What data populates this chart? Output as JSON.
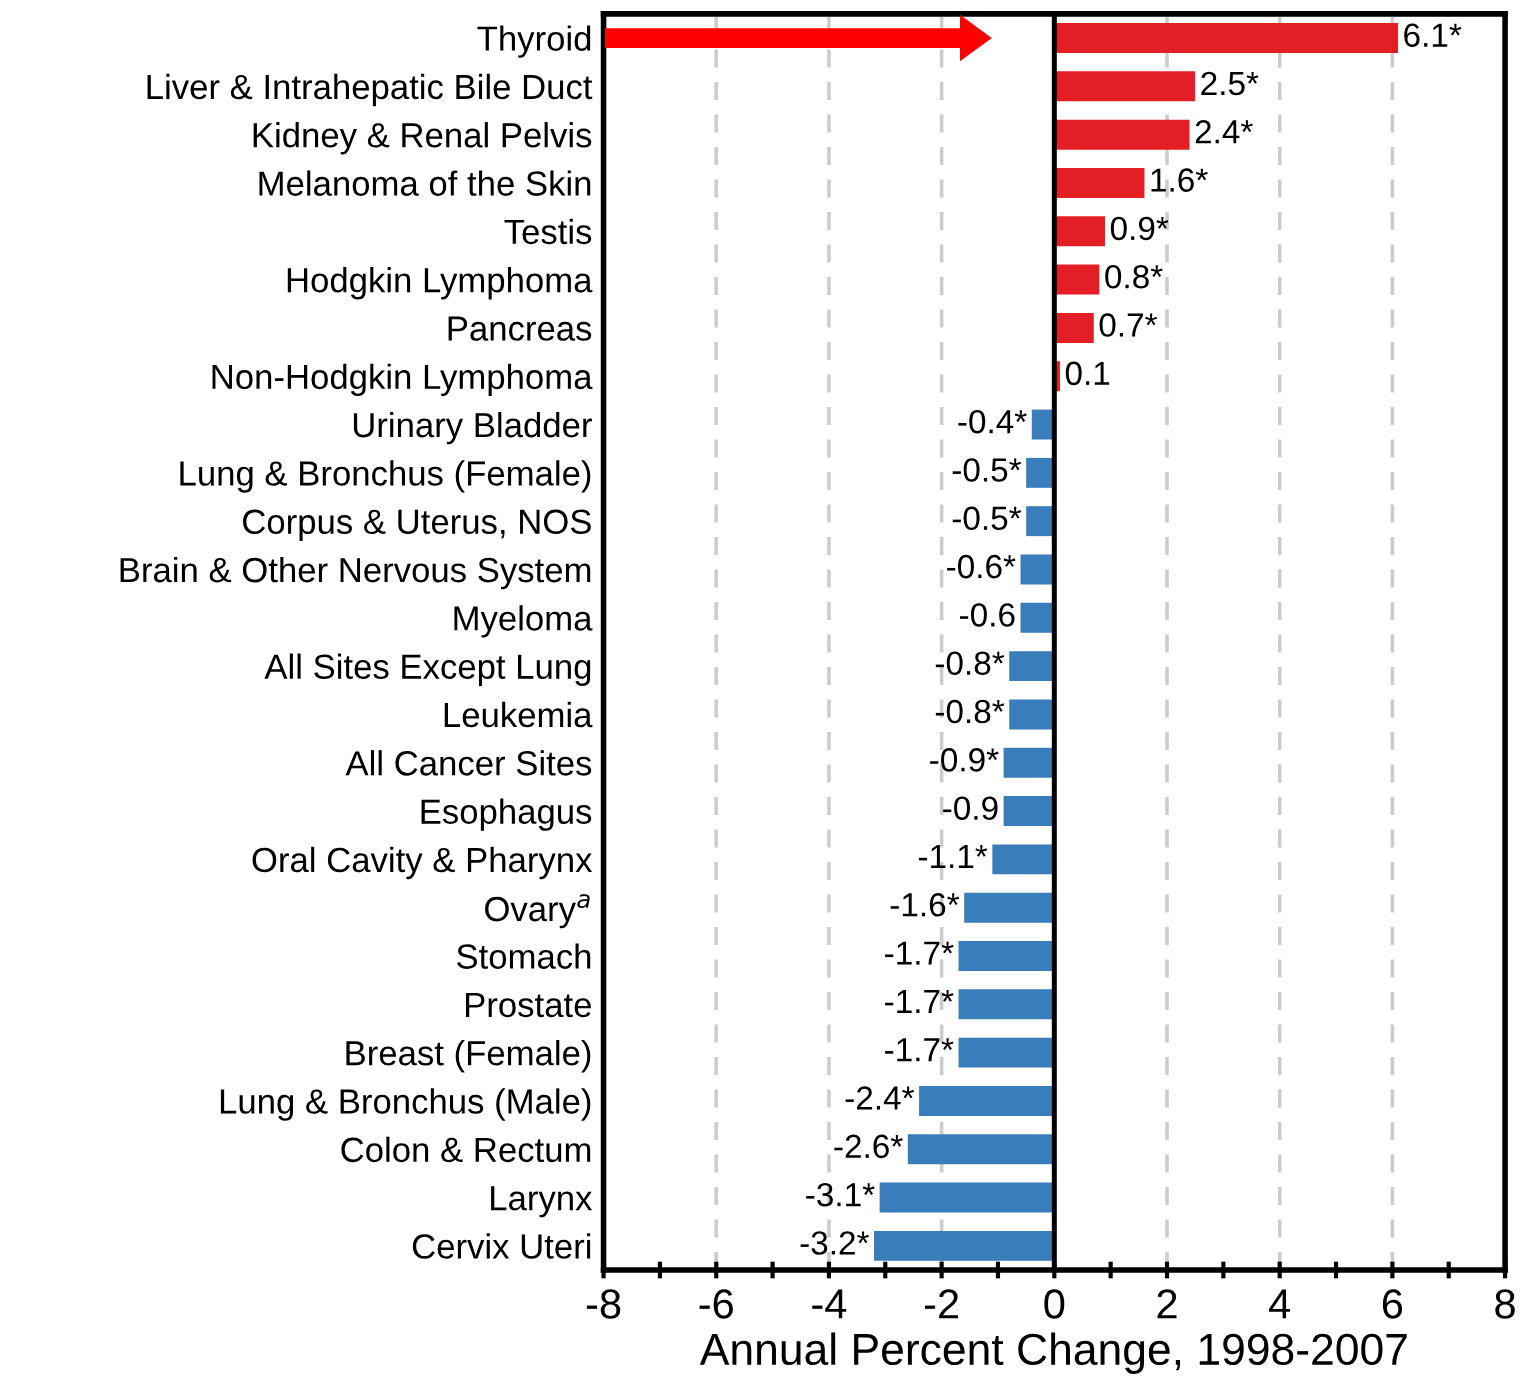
{
  "chart_data": {
    "type": "bar",
    "orientation": "horizontal",
    "xlabel": "Annual Percent Change, 1998-2007",
    "categories": [
      "Thyroid",
      "Liver & Intrahepatic Bile Duct",
      "Kidney & Renal Pelvis",
      "Melanoma of the Skin",
      "Testis",
      "Hodgkin Lymphoma",
      "Pancreas",
      "Non-Hodgkin Lymphoma",
      "Urinary Bladder",
      "Lung & Bronchus (Female)",
      "Corpus & Uterus, NOS",
      "Brain & Other Nervous System",
      "Myeloma",
      "All Sites Except Lung",
      "Leukemia",
      "All Cancer Sites",
      "Esophagus",
      "Oral Cavity & Pharynx",
      "Ovary$^{a}$",
      "Stomach",
      "Prostate",
      "Breast (Female)",
      "Lung & Bronchus (Male)",
      "Colon & Rectum",
      "Larynx",
      "Cervix Uteri"
    ],
    "values": [
      6.1,
      2.5,
      2.4,
      1.6,
      0.9,
      0.8,
      0.7,
      0.1,
      -0.4,
      -0.5,
      -0.5,
      -0.6,
      -0.6,
      -0.8,
      -0.8,
      -0.9,
      -0.9,
      -1.1,
      -1.6,
      -1.7,
      -1.7,
      -1.7,
      -2.4,
      -2.6,
      -3.1,
      -3.2
    ],
    "value_labels": [
      "6.1*",
      "2.5*",
      "2.4*",
      "1.6*",
      "0.9*",
      "0.8*",
      "0.7*",
      "0.1",
      "-0.4*",
      "-0.5*",
      "-0.5*",
      "-0.6*",
      "-0.6",
      "-0.8*",
      "-0.8*",
      "-0.9*",
      "-0.9",
      "-1.1*",
      "-1.6*",
      "-1.7*",
      "-1.7*",
      "-1.7*",
      "-2.4*",
      "-2.6*",
      "-3.1*",
      "-3.2*"
    ],
    "colors": [
      "#e31e24",
      "#e31e24",
      "#e31e24",
      "#e31e24",
      "#e31e24",
      "#e31e24",
      "#e31e24",
      "#e31e24",
      "#3a7dbb",
      "#3a7dbb",
      "#3a7dbb",
      "#3a7dbb",
      "#3a7dbb",
      "#3a7dbb",
      "#3a7dbb",
      "#3a7dbb",
      "#3a7dbb",
      "#3a7dbb",
      "#3a7dbb",
      "#3a7dbb",
      "#3a7dbb",
      "#3a7dbb",
      "#3a7dbb",
      "#3a7dbb",
      "#3a7dbb",
      "#3a7dbb"
    ],
    "xlim": [
      -8,
      8
    ],
    "xticks": [
      -8,
      {
        "value": -7,
        "label": null
      },
      -6,
      {
        "value": -5,
        "label": null
      },
      -4,
      {
        "value": -3,
        "label": null
      },
      -2,
      {
        "value": -1,
        "label": null
      },
      0,
      {
        "value": 1,
        "label": null
      },
      2,
      {
        "value": 3,
        "label": null
      },
      4,
      {
        "value": 5,
        "label": null
      },
      6,
      {
        "value": 7,
        "label": null
      },
      8
    ],
    "grid": "x",
    "ref_lines": [
      {
        "axis": "x",
        "value": 0,
        "color": "#000000",
        "line_style": "solid"
      }
    ],
    "legend": false
  }
}
